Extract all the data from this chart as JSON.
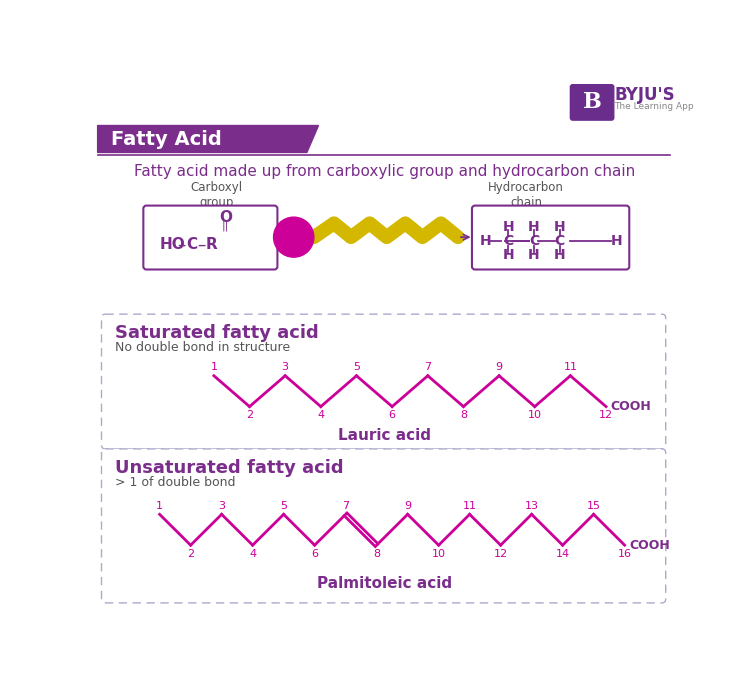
{
  "title": "Fatty Acid",
  "subtitle": "Fatty acid made up from carboxylic group and hydrocarbon chain",
  "header_bg": "#7B2D8B",
  "header_text_color": "#ffffff",
  "purple_color": "#7B2D8B",
  "magenta_color": "#CC0099",
  "yellow_color": "#D4B800",
  "byju_purple": "#6B2D8B",
  "carboxyl_label": "Carboxyl\ngroup",
  "hydrocarbon_label": "Hydrocarbon\nchain",
  "sat_title": "Saturated fatty acid",
  "sat_subtitle": "No double bond in structure",
  "sat_acid_name": "Lauric acid",
  "unsat_title": "Unsaturated fatty acid",
  "unsat_subtitle": "> 1 of double bond",
  "unsat_acid_name": "Palmitoleic acid",
  "background_color": "#ffffff",
  "box_border_color": "#AAAACC"
}
